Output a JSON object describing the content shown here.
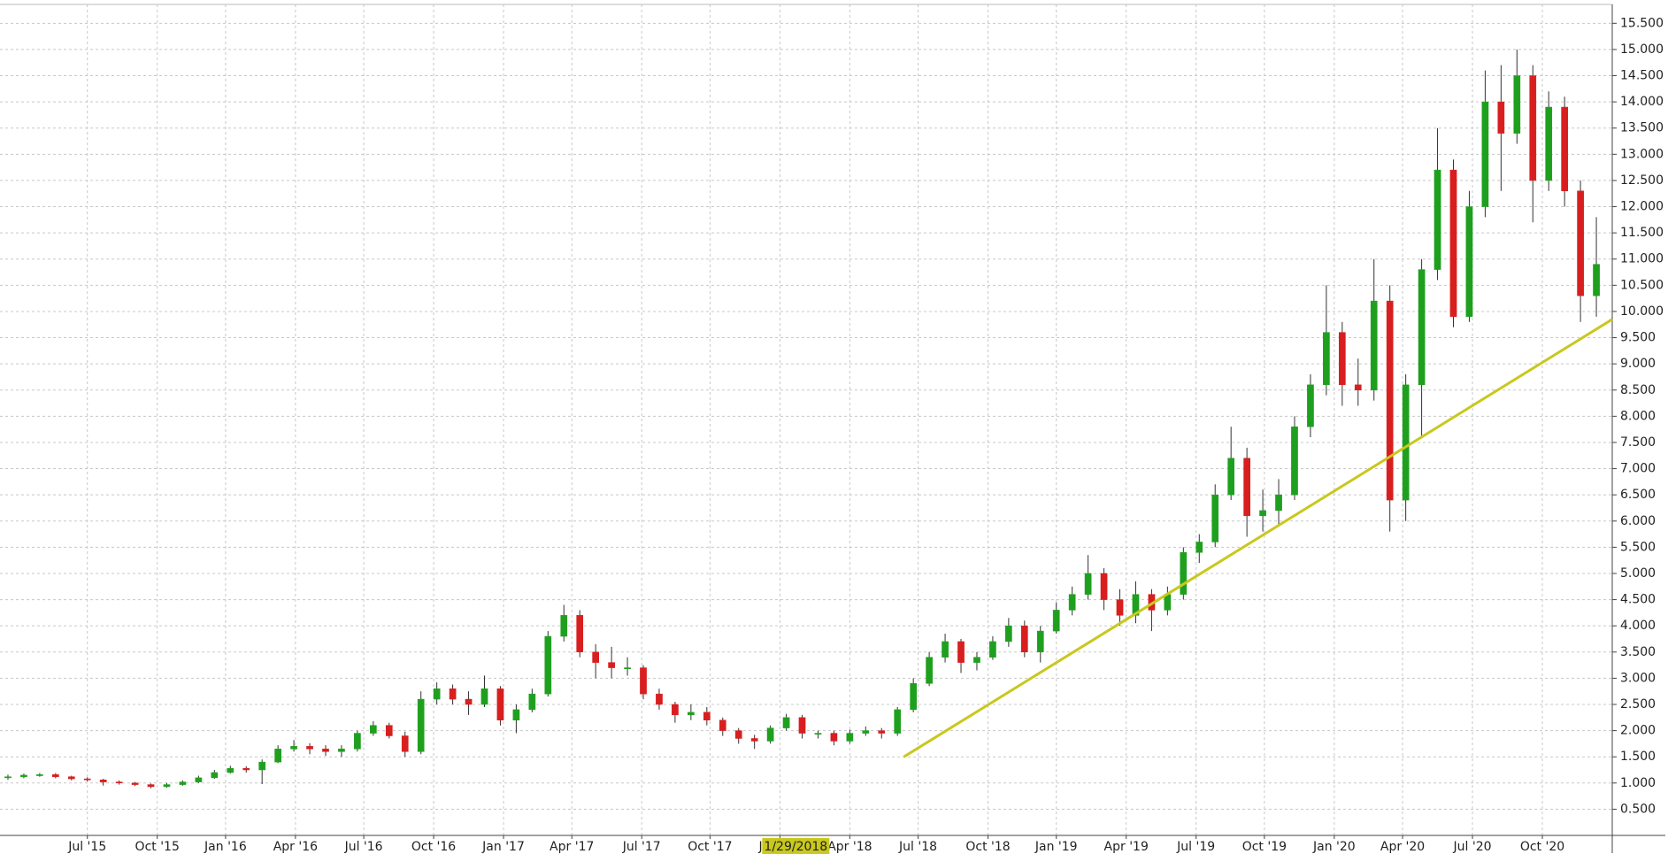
{
  "chart_data": {
    "type": "candlestick",
    "xlim": [
      0,
      101.5
    ],
    "ylim": [
      0,
      15.86
    ],
    "grid": true,
    "up_color": "#1ea01e",
    "down_color": "#d81e1e",
    "xticks": [
      {
        "value": 5.5,
        "label": "Jul '15"
      },
      {
        "value": 9.9,
        "label": "Oct '15"
      },
      {
        "value": 14.2,
        "label": "Jan '16"
      },
      {
        "value": 18.6,
        "label": "Apr '16"
      },
      {
        "value": 22.9,
        "label": "Jul '16"
      },
      {
        "value": 27.3,
        "label": "Oct '16"
      },
      {
        "value": 31.7,
        "label": "Jan '17"
      },
      {
        "value": 36.0,
        "label": "Apr '17"
      },
      {
        "value": 40.4,
        "label": "Jul '17"
      },
      {
        "value": 44.7,
        "label": "Oct '17"
      },
      {
        "value": 49.1,
        "label": "Jan '18"
      },
      {
        "value": 53.5,
        "label": "Apr '18"
      },
      {
        "value": 57.8,
        "label": "Jul '18"
      },
      {
        "value": 62.2,
        "label": "Oct '18"
      },
      {
        "value": 66.5,
        "label": "Jan '19"
      },
      {
        "value": 70.9,
        "label": "Apr '19"
      },
      {
        "value": 75.3,
        "label": "Jul '19"
      },
      {
        "value": 79.6,
        "label": "Oct '19"
      },
      {
        "value": 84.0,
        "label": "Jan '20"
      },
      {
        "value": 88.3,
        "label": "Apr '20"
      },
      {
        "value": 92.7,
        "label": "Jul '20"
      },
      {
        "value": 97.1,
        "label": "Oct '20"
      }
    ],
    "yticks": [
      {
        "value": 0.5,
        "label": "0.500"
      },
      {
        "value": 1,
        "label": "1.000"
      },
      {
        "value": 1.5,
        "label": "1.500"
      },
      {
        "value": 2,
        "label": "2.000"
      },
      {
        "value": 2.5,
        "label": "2.500"
      },
      {
        "value": 3,
        "label": "3.000"
      },
      {
        "value": 3.5,
        "label": "3.500"
      },
      {
        "value": 4,
        "label": "4.000"
      },
      {
        "value": 4.5,
        "label": "4.500"
      },
      {
        "value": 5,
        "label": "5.000"
      },
      {
        "value": 5.5,
        "label": "5.500"
      },
      {
        "value": 6,
        "label": "6.000"
      },
      {
        "value": 6.5,
        "label": "6.500"
      },
      {
        "value": 7,
        "label": "7.000"
      },
      {
        "value": 7.5,
        "label": "7.500"
      },
      {
        "value": 8,
        "label": "8.000"
      },
      {
        "value": 8.5,
        "label": "8.500"
      },
      {
        "value": 9,
        "label": "9.000"
      },
      {
        "value": 9.5,
        "label": "9.500"
      },
      {
        "value": 10,
        "label": "10.000"
      },
      {
        "value": 10.5,
        "label": "10.500"
      },
      {
        "value": 11,
        "label": "11.000"
      },
      {
        "value": 11.5,
        "label": "11.500"
      },
      {
        "value": 12,
        "label": "12.000"
      },
      {
        "value": 12.5,
        "label": "12.500"
      },
      {
        "value": 13,
        "label": "13.000"
      },
      {
        "value": 13.5,
        "label": "13.500"
      },
      {
        "value": 14,
        "label": "14.000"
      },
      {
        "value": 14.5,
        "label": "14.500"
      },
      {
        "value": 15,
        "label": "15.000"
      },
      {
        "value": 15.5,
        "label": "15.500"
      }
    ],
    "open": [
      1.1,
      1.12,
      1.15,
      1.16,
      1.12,
      1.08,
      1.06,
      1.02,
      1.0,
      0.97,
      0.93,
      0.97,
      1.02,
      1.1,
      1.2,
      1.28,
      1.25,
      1.4,
      1.65,
      1.7,
      1.65,
      1.6,
      1.65,
      1.95,
      2.1,
      1.9,
      1.6,
      2.6,
      2.8,
      2.6,
      2.5,
      2.8,
      2.2,
      2.4,
      2.7,
      3.8,
      4.2,
      3.5,
      3.3,
      3.2,
      3.2,
      2.7,
      2.5,
      2.3,
      2.35,
      2.2,
      2.0,
      1.85,
      1.8,
      2.05,
      2.25,
      1.95,
      1.95,
      1.8,
      1.95,
      2.0,
      1.95,
      2.4,
      2.9,
      3.4,
      3.7,
      3.3,
      3.4,
      3.7,
      4.0,
      3.5,
      3.9,
      4.3,
      4.6,
      5.0,
      4.5,
      4.2,
      4.6,
      4.3,
      4.6,
      5.4,
      5.6,
      6.5,
      7.2,
      6.1,
      6.2,
      6.5,
      7.8,
      8.6,
      9.6,
      8.6,
      8.5,
      10.2,
      6.4,
      8.6,
      10.8,
      12.7,
      9.9,
      12.0,
      14.0,
      13.4,
      14.5,
      12.5,
      13.9,
      12.3,
      10.3
    ],
    "high": [
      1.16,
      1.18,
      1.19,
      1.19,
      1.14,
      1.11,
      1.08,
      1.05,
      1.02,
      0.99,
      1.0,
      1.05,
      1.14,
      1.25,
      1.33,
      1.32,
      1.45,
      1.72,
      1.82,
      1.76,
      1.72,
      1.72,
      2.0,
      2.18,
      2.15,
      1.98,
      2.75,
      2.92,
      2.88,
      2.75,
      3.05,
      2.85,
      2.5,
      2.8,
      3.9,
      4.4,
      4.3,
      3.65,
      3.6,
      3.4,
      3.25,
      2.8,
      2.55,
      2.5,
      2.45,
      2.25,
      2.05,
      1.92,
      2.1,
      2.32,
      2.3,
      2.0,
      2.0,
      2.02,
      2.08,
      2.05,
      2.45,
      3.0,
      3.5,
      3.85,
      3.75,
      3.5,
      3.8,
      4.15,
      4.1,
      4.0,
      4.45,
      4.75,
      5.35,
      5.1,
      4.7,
      4.85,
      4.7,
      4.75,
      5.5,
      5.75,
      6.7,
      7.8,
      7.4,
      6.6,
      6.8,
      8.0,
      8.8,
      10.5,
      9.8,
      9.1,
      11.0,
      10.5,
      8.8,
      11.0,
      13.5,
      12.9,
      12.3,
      14.6,
      14.7,
      15.0,
      14.7,
      14.2,
      14.1,
      12.5,
      11.8
    ],
    "low": [
      1.06,
      1.09,
      1.12,
      1.09,
      1.05,
      1.03,
      0.95,
      0.97,
      0.94,
      0.9,
      0.91,
      0.95,
      1.0,
      1.08,
      1.18,
      1.2,
      0.98,
      1.38,
      1.6,
      1.55,
      1.52,
      1.5,
      1.6,
      1.9,
      1.85,
      1.5,
      1.55,
      2.5,
      2.5,
      2.3,
      2.45,
      2.1,
      1.95,
      2.35,
      2.65,
      3.7,
      3.4,
      3.0,
      3.0,
      3.05,
      2.6,
      2.4,
      2.15,
      2.2,
      2.1,
      1.9,
      1.75,
      1.65,
      1.75,
      2.0,
      1.85,
      1.85,
      1.72,
      1.75,
      1.9,
      1.85,
      1.9,
      2.35,
      2.85,
      3.3,
      3.1,
      3.15,
      3.35,
      3.6,
      3.4,
      3.3,
      3.85,
      4.2,
      4.5,
      4.3,
      4.0,
      4.05,
      3.9,
      4.2,
      4.5,
      5.2,
      5.5,
      6.4,
      5.7,
      5.8,
      5.9,
      6.4,
      7.6,
      8.4,
      8.2,
      8.2,
      8.3,
      5.8,
      6.0,
      7.6,
      10.6,
      9.7,
      9.8,
      11.8,
      12.3,
      13.2,
      11.7,
      12.3,
      12.0,
      9.8,
      9.9
    ],
    "close": [
      1.12,
      1.15,
      1.16,
      1.12,
      1.08,
      1.06,
      1.02,
      1.0,
      0.97,
      0.93,
      0.97,
      1.02,
      1.1,
      1.2,
      1.28,
      1.25,
      1.4,
      1.65,
      1.7,
      1.65,
      1.6,
      1.65,
      1.95,
      2.1,
      1.9,
      1.6,
      2.6,
      2.8,
      2.6,
      2.5,
      2.8,
      2.2,
      2.4,
      2.7,
      3.8,
      4.2,
      3.5,
      3.3,
      3.2,
      3.2,
      2.7,
      2.5,
      2.3,
      2.35,
      2.2,
      2.0,
      1.85,
      1.8,
      2.05,
      2.25,
      1.95,
      1.95,
      1.8,
      1.95,
      2.0,
      1.95,
      2.4,
      2.9,
      3.4,
      3.7,
      3.3,
      3.4,
      3.7,
      4.0,
      3.5,
      3.9,
      4.3,
      4.6,
      5.0,
      4.5,
      4.2,
      4.6,
      4.3,
      4.6,
      5.4,
      5.6,
      6.5,
      7.2,
      6.1,
      6.2,
      6.5,
      7.8,
      8.6,
      9.6,
      8.6,
      8.5,
      10.2,
      6.4,
      8.6,
      10.8,
      12.7,
      9.9,
      12.0,
      14.0,
      13.4,
      14.5,
      12.5,
      13.9,
      12.3,
      10.3,
      10.9
    ],
    "trendline": {
      "x": [
        56.9,
        101.5
      ],
      "y": [
        1.5,
        9.85
      ],
      "color": "#c8c81e"
    },
    "crosshair": {
      "x": 50.1,
      "label": "1/29/2018"
    }
  }
}
